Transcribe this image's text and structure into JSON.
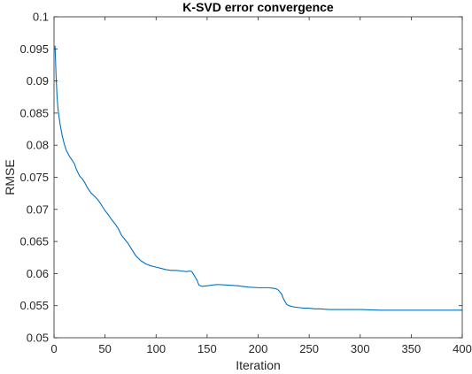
{
  "chart_data": {
    "type": "line",
    "title": "K-SVD error convergence",
    "xlabel": "Iteration",
    "ylabel": "RMSE",
    "xlim": [
      0,
      400
    ],
    "ylim": [
      0.05,
      0.1
    ],
    "xticks": [
      0,
      50,
      100,
      150,
      200,
      250,
      300,
      350,
      400
    ],
    "yticks": [
      0.05,
      0.055,
      0.06,
      0.065,
      0.07,
      0.075,
      0.08,
      0.085,
      0.09,
      0.095,
      0.1
    ],
    "xtick_labels": [
      "0",
      "50",
      "100",
      "150",
      "200",
      "250",
      "300",
      "350",
      "400"
    ],
    "ytick_labels": [
      "0.05",
      "0.055",
      "0.06",
      "0.065",
      "0.07",
      "0.075",
      "0.08",
      "0.085",
      "0.09",
      "0.095",
      "0.1"
    ],
    "grid": false,
    "line_color": "#0072BD",
    "series": [
      {
        "x": [
          1,
          2,
          3,
          4,
          5,
          6,
          8,
          10,
          12,
          15,
          18,
          20,
          22,
          25,
          28,
          30,
          33,
          36,
          40,
          43,
          46,
          50,
          53,
          56,
          60,
          63,
          66,
          70,
          73,
          76,
          80,
          85,
          90,
          95,
          100,
          105,
          110,
          115,
          120,
          125,
          130,
          133,
          135,
          137,
          140,
          142,
          145,
          150,
          155,
          160,
          170,
          180,
          190,
          200,
          205,
          210,
          215,
          218,
          220,
          223,
          225,
          228,
          230,
          235,
          240,
          245,
          250,
          255,
          260,
          270,
          280,
          290,
          300,
          320,
          350,
          380,
          400
        ],
        "y": [
          0.0955,
          0.0908,
          0.0875,
          0.0855,
          0.0843,
          0.0832,
          0.0815,
          0.0802,
          0.0792,
          0.0783,
          0.0776,
          0.0771,
          0.0762,
          0.0752,
          0.0747,
          0.0742,
          0.0733,
          0.0726,
          0.072,
          0.0715,
          0.0708,
          0.0698,
          0.0692,
          0.0685,
          0.0677,
          0.067,
          0.066,
          0.0652,
          0.0646,
          0.0638,
          0.0628,
          0.062,
          0.0615,
          0.0612,
          0.061,
          0.0608,
          0.0606,
          0.0605,
          0.0605,
          0.0604,
          0.0603,
          0.0604,
          0.0603,
          0.0598,
          0.059,
          0.0582,
          0.058,
          0.0581,
          0.0582,
          0.0583,
          0.0582,
          0.0581,
          0.0579,
          0.0578,
          0.0578,
          0.0578,
          0.0577,
          0.0576,
          0.0574,
          0.0568,
          0.056,
          0.0552,
          0.055,
          0.0548,
          0.0547,
          0.0546,
          0.0546,
          0.0545,
          0.0545,
          0.0544,
          0.0544,
          0.0544,
          0.0544,
          0.0543,
          0.0543,
          0.0543,
          0.0543
        ]
      }
    ]
  }
}
